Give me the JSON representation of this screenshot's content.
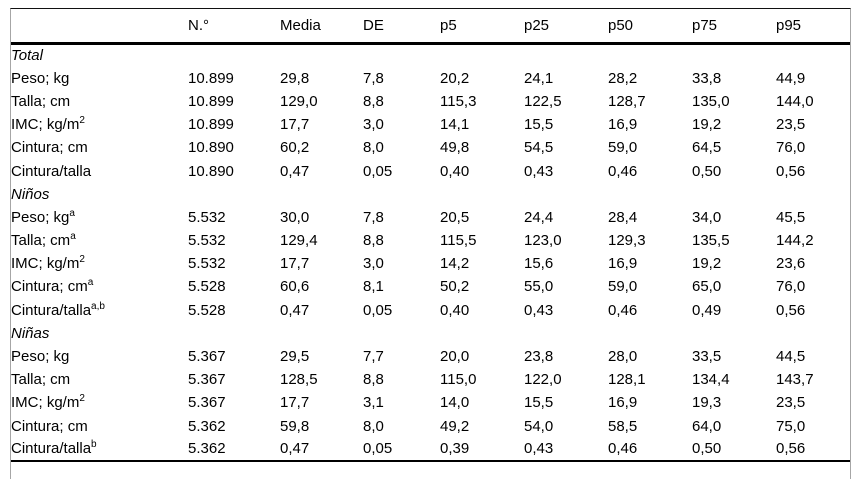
{
  "table": {
    "columns": [
      "N.°",
      "Media",
      "DE",
      "p5",
      "p25",
      "p50",
      "p75",
      "p95"
    ],
    "sections": [
      {
        "label": "Total",
        "rows": [
          {
            "label": "Peso; kg",
            "sup": "",
            "values": [
              "10.899",
              "29,8",
              "7,8",
              "20,2",
              "24,1",
              "28,2",
              "33,8",
              "44,9"
            ]
          },
          {
            "label": "Talla; cm",
            "sup": "",
            "values": [
              "10.899",
              "129,0",
              "8,8",
              "115,3",
              "122,5",
              "128,7",
              "135,0",
              "144,0"
            ]
          },
          {
            "label": "IMC; kg/m",
            "sup": "2",
            "values": [
              "10.899",
              "17,7",
              "3,0",
              "14,1",
              "15,5",
              "16,9",
              "19,2",
              "23,5"
            ]
          },
          {
            "label": "Cintura; cm",
            "sup": "",
            "values": [
              "10.890",
              "60,2",
              "8,0",
              "49,8",
              "54,5",
              "59,0",
              "64,5",
              "76,0"
            ]
          },
          {
            "label": "Cintura/talla",
            "sup": "",
            "values": [
              "10.890",
              "0,47",
              "0,05",
              "0,40",
              "0,43",
              "0,46",
              "0,50",
              "0,56"
            ]
          }
        ]
      },
      {
        "label": "Niños",
        "rows": [
          {
            "label": "Peso; kg",
            "sup": "a",
            "values": [
              "5.532",
              "30,0",
              "7,8",
              "20,5",
              "24,4",
              "28,4",
              "34,0",
              "45,5"
            ]
          },
          {
            "label": "Talla; cm",
            "sup": "a",
            "values": [
              "5.532",
              "129,4",
              "8,8",
              "115,5",
              "123,0",
              "129,3",
              "135,5",
              "144,2"
            ]
          },
          {
            "label": "IMC; kg/m",
            "sup": "2",
            "values": [
              "5.532",
              "17,7",
              "3,0",
              "14,2",
              "15,6",
              "16,9",
              "19,2",
              "23,6"
            ]
          },
          {
            "label": "Cintura; cm",
            "sup": "a",
            "values": [
              "5.528",
              "60,6",
              "8,1",
              "50,2",
              "55,0",
              "59,0",
              "65,0",
              "76,0"
            ]
          },
          {
            "label": "Cintura/talla",
            "sup": "a,b",
            "values": [
              "5.528",
              "0,47",
              "0,05",
              "0,40",
              "0,43",
              "0,46",
              "0,49",
              "0,56"
            ]
          }
        ]
      },
      {
        "label": "Niñas",
        "rows": [
          {
            "label": "Peso; kg",
            "sup": "",
            "values": [
              "5.367",
              "29,5",
              "7,7",
              "20,0",
              "23,8",
              "28,0",
              "33,5",
              "44,5"
            ]
          },
          {
            "label": "Talla; cm",
            "sup": "",
            "values": [
              "5.367",
              "128,5",
              "8,8",
              "115,0",
              "122,0",
              "128,1",
              "134,4",
              "143,7"
            ]
          },
          {
            "label": "IMC; kg/m",
            "sup": "2",
            "values": [
              "5.367",
              "17,7",
              "3,1",
              "14,0",
              "15,5",
              "16,9",
              "19,3",
              "23,5"
            ]
          },
          {
            "label": "Cintura; cm",
            "sup": "",
            "values": [
              "5.362",
              "59,8",
              "8,0",
              "49,2",
              "54,0",
              "58,5",
              "64,0",
              "75,0"
            ]
          },
          {
            "label": "Cintura/talla",
            "sup": "b",
            "values": [
              "5.362",
              "0,47",
              "0,05",
              "0,39",
              "0,43",
              "0,46",
              "0,50",
              "0,56"
            ]
          }
        ]
      }
    ]
  }
}
